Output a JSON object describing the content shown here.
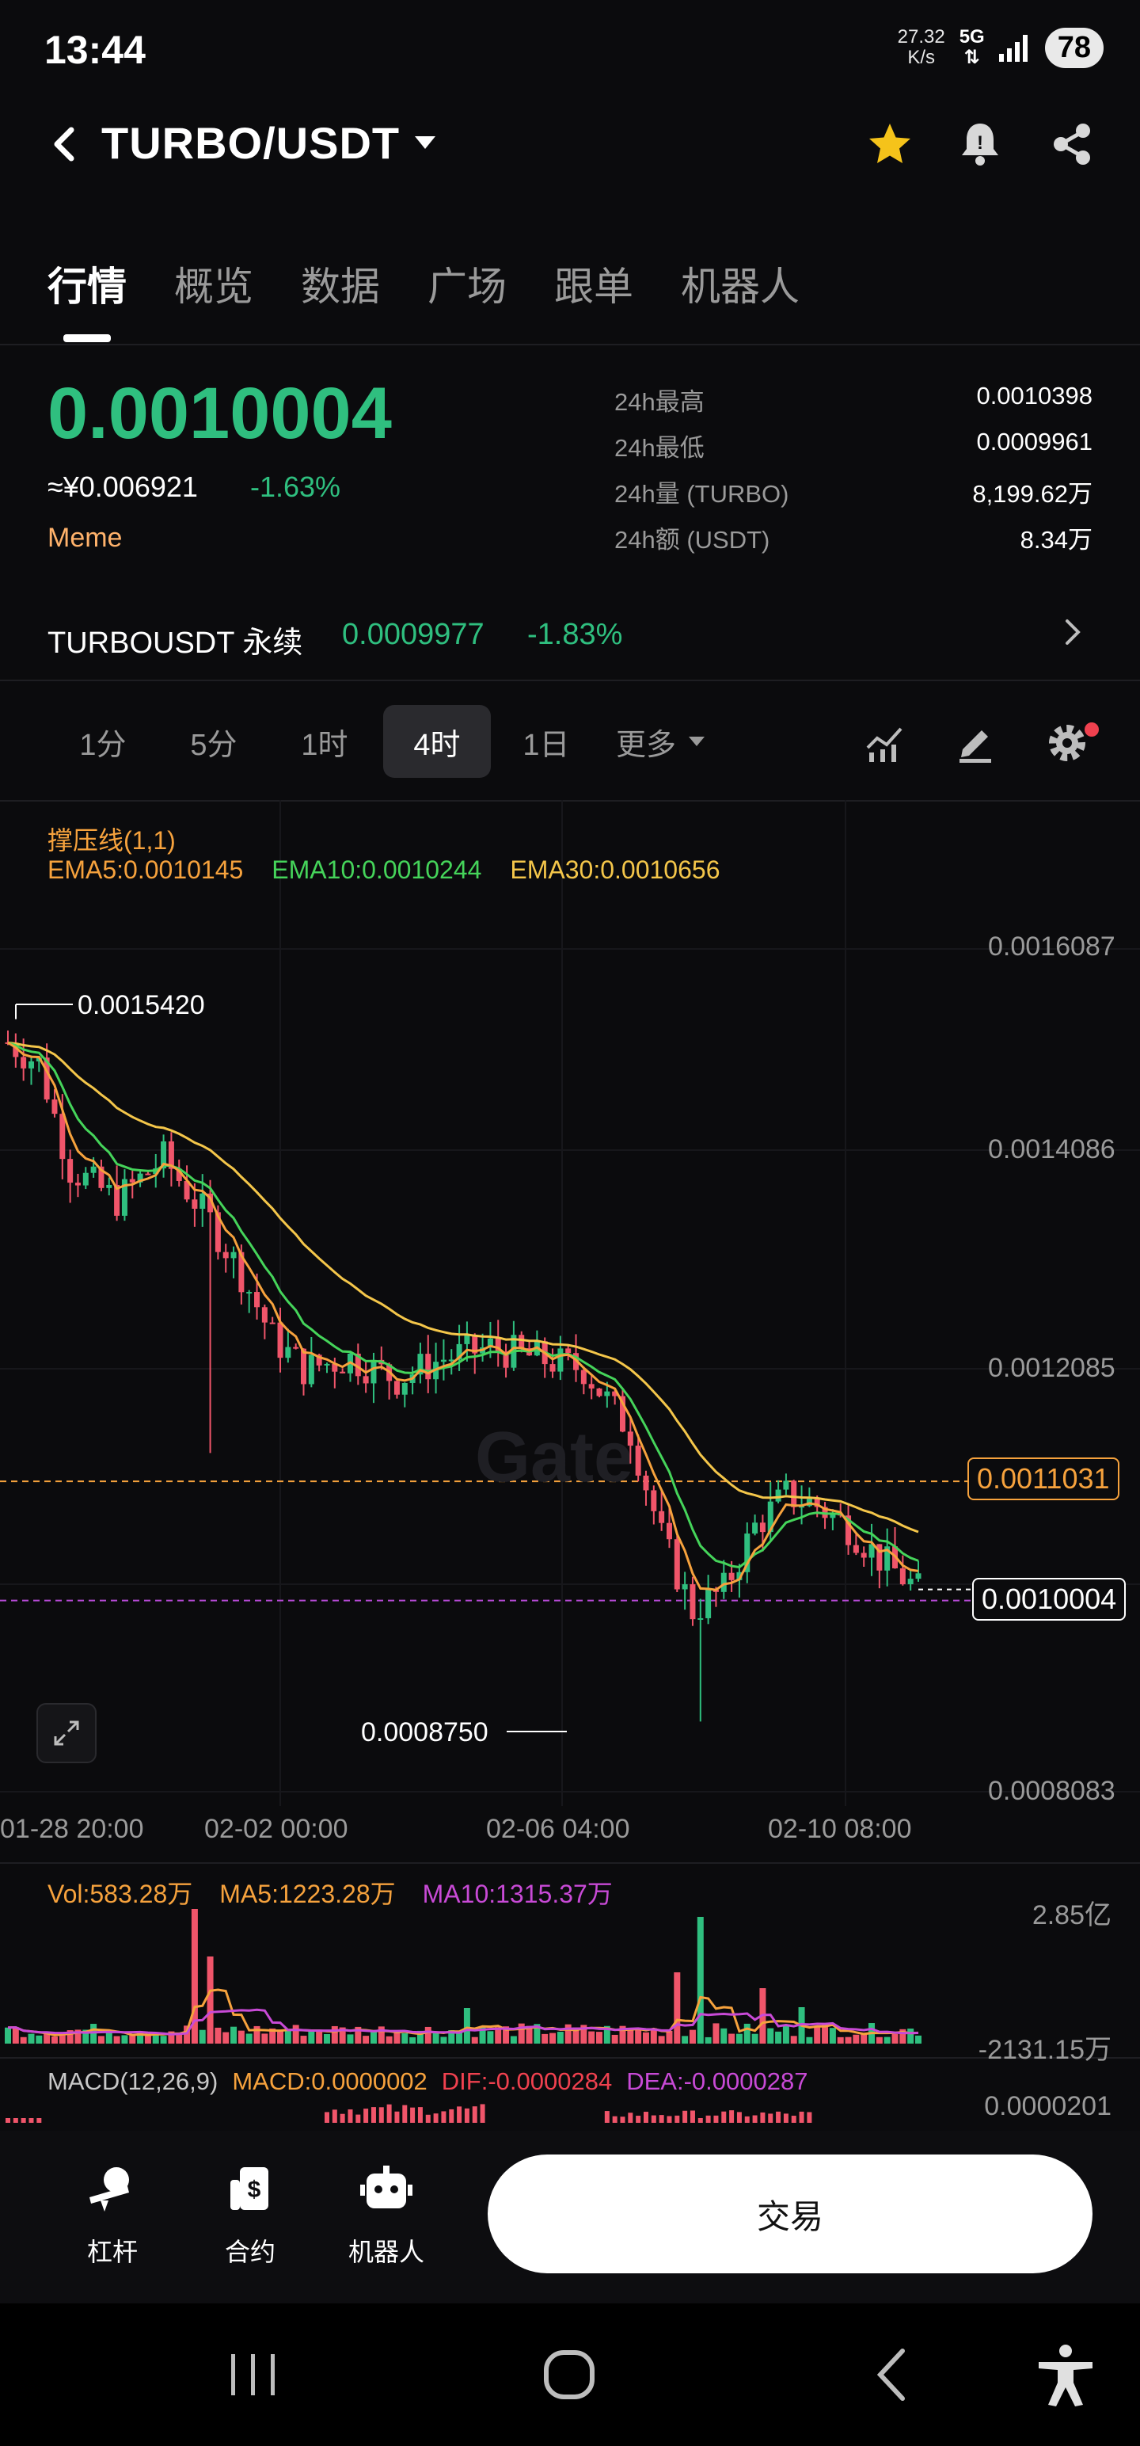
{
  "status_bar": {
    "time": "13:44",
    "net_speed_value": "27.32",
    "net_speed_unit": "K/s",
    "network": "5G",
    "battery": "78"
  },
  "header": {
    "pair": "TURBO/USDT"
  },
  "tabs": [
    {
      "label": "行情",
      "active": true
    },
    {
      "label": "概览",
      "active": false
    },
    {
      "label": "数据",
      "active": false
    },
    {
      "label": "广场",
      "active": false
    },
    {
      "label": "跟单",
      "active": false
    },
    {
      "label": "机器人",
      "active": false
    }
  ],
  "ticker": {
    "last_price": "0.0010004",
    "cny_price": "≈¥0.006921",
    "change_pct": "-1.63%",
    "tag": "Meme",
    "stats": [
      {
        "label": "24h最高",
        "value": "0.0010398"
      },
      {
        "label": "24h最低",
        "value": "0.0009961"
      },
      {
        "label": "24h量 (TURBO)",
        "value": "8,199.62万"
      },
      {
        "label": "24h额 (USDT)",
        "value": "8.34万"
      }
    ]
  },
  "perpetual": {
    "name": "TURBOUSDT 永续",
    "price": "0.0009977",
    "change": "-1.83%"
  },
  "timeframes": [
    {
      "label": "1分",
      "active": false
    },
    {
      "label": "5分",
      "active": false
    },
    {
      "label": "1时",
      "active": false
    },
    {
      "label": "4时",
      "active": true
    },
    {
      "label": "1日",
      "active": false
    }
  ],
  "more_label": "更多",
  "chart": {
    "pressure_label": "撑压线(1,1)",
    "ema5": "EMA5:0.0010145",
    "ema10": "EMA10:0.0010244",
    "ema30": "EMA30:0.0010656",
    "y_ticks": [
      "0.0016087",
      "0.0014086",
      "0.0012085",
      "0.0008083"
    ],
    "resistance_tag": "0.0011031",
    "current_tag": "0.0010004",
    "high_annotation": "0.0015420",
    "low_annotation": "0.0008750",
    "x_ticks": [
      "01-28 20:00",
      "02-02 00:00",
      "02-06 04:00",
      "02-10 08:00"
    ],
    "watermark": "Gate",
    "volume": {
      "vol": "Vol:583.28万",
      "ma5": "MA5:1223.28万",
      "ma10": "MA10:1315.37万",
      "y_top": "2.85亿",
      "y_bottom": "-2131.15万"
    },
    "macd": {
      "name": "MACD(12,26,9)",
      "macd": "MACD:0.0000002",
      "dif": "DIF:-0.0000284",
      "dea": "DEA:-0.0000287",
      "y_top": "0.0000201"
    }
  },
  "chart_data": {
    "type": "candlestick",
    "interval": "4h",
    "ylim": [
      0.0008083,
      0.0016087
    ],
    "x_ticks": [
      "01-28 20:00",
      "02-02 00:00",
      "02-06 04:00",
      "02-10 08:00"
    ],
    "series": [
      {
        "name": "EMA5",
        "last": 0.0010145
      },
      {
        "name": "EMA10",
        "last": 0.0010244
      },
      {
        "name": "EMA30",
        "last": 0.0010656
      }
    ],
    "annotations": {
      "high": 0.001542,
      "low": 0.000875,
      "resistance": 0.0011031,
      "last": 0.0010004
    },
    "colors": {
      "up": "#2fbf7f",
      "down": "#f0556a",
      "ema5": "#f6a23d",
      "ema10": "#45d45a",
      "ema30": "#f4c64a"
    }
  },
  "bottom_bar": {
    "items": [
      {
        "label": "杠杆",
        "icon": "leverage-icon"
      },
      {
        "label": "合约",
        "icon": "contract-icon"
      },
      {
        "label": "机器人",
        "icon": "robot-icon"
      }
    ],
    "trade": "交易"
  }
}
